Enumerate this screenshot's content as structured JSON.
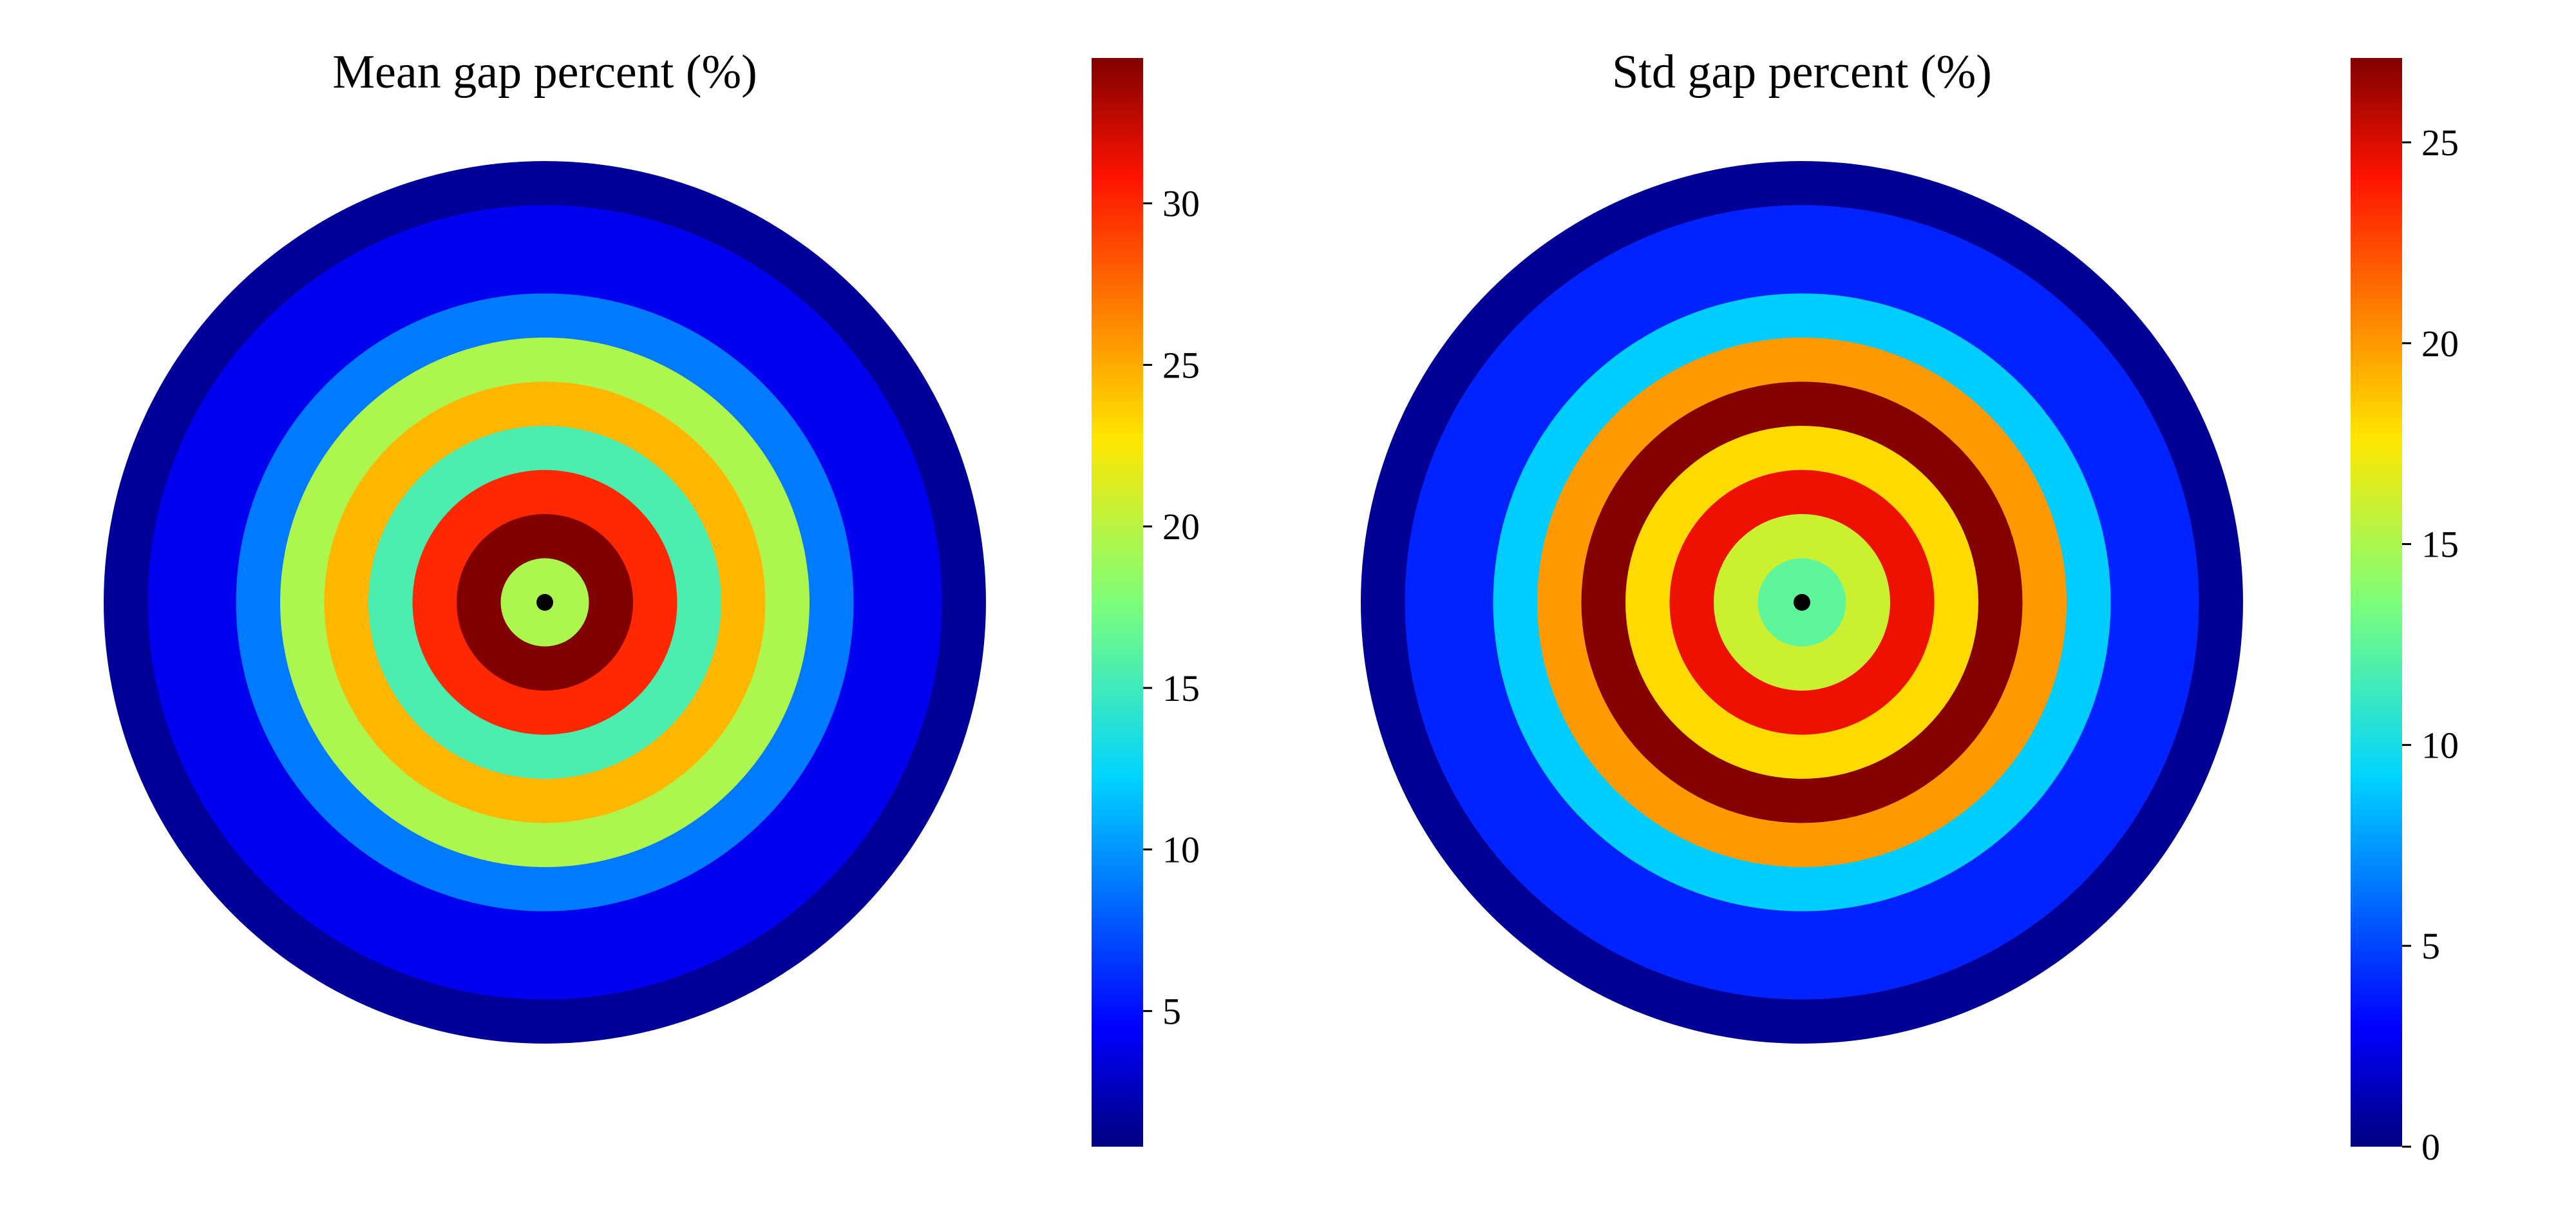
{
  "chart_data": [
    {
      "type": "heatmap",
      "subtype": "concentric-ring-map",
      "title": "Mean gap percent (%)",
      "colormap": "jet",
      "grid": false,
      "legend": "colorbar-right",
      "ring_count": 10,
      "rings_center_to_edge": [
        19.5,
        34.5,
        30.0,
        15.5,
        24.5,
        19.5,
        9.0,
        4.0,
        4.0,
        1.5
      ],
      "center_marker": "black-dot",
      "colorbar": {
        "range": [
          0.8,
          34.5
        ],
        "ticks": [
          5,
          10,
          15,
          20,
          25,
          30
        ],
        "tick_labels": [
          "5",
          "10",
          "15",
          "20",
          "25",
          "30"
        ]
      }
    },
    {
      "type": "heatmap",
      "subtype": "concentric-ring-map",
      "title": "Std gap percent (%)",
      "colormap": "jet",
      "grid": false,
      "legend": "colorbar-right",
      "ring_count": 10,
      "rings_center_to_edge": [
        12.5,
        16.0,
        24.5,
        18.0,
        27.0,
        20.0,
        9.0,
        4.0,
        4.0,
        0.5
      ],
      "center_marker": "black-dot",
      "colorbar": {
        "range": [
          0,
          27.1
        ],
        "ticks": [
          0,
          5,
          10,
          15,
          20,
          25
        ],
        "tick_labels": [
          "0",
          "5",
          "10",
          "15",
          "20",
          "25"
        ]
      }
    }
  ]
}
